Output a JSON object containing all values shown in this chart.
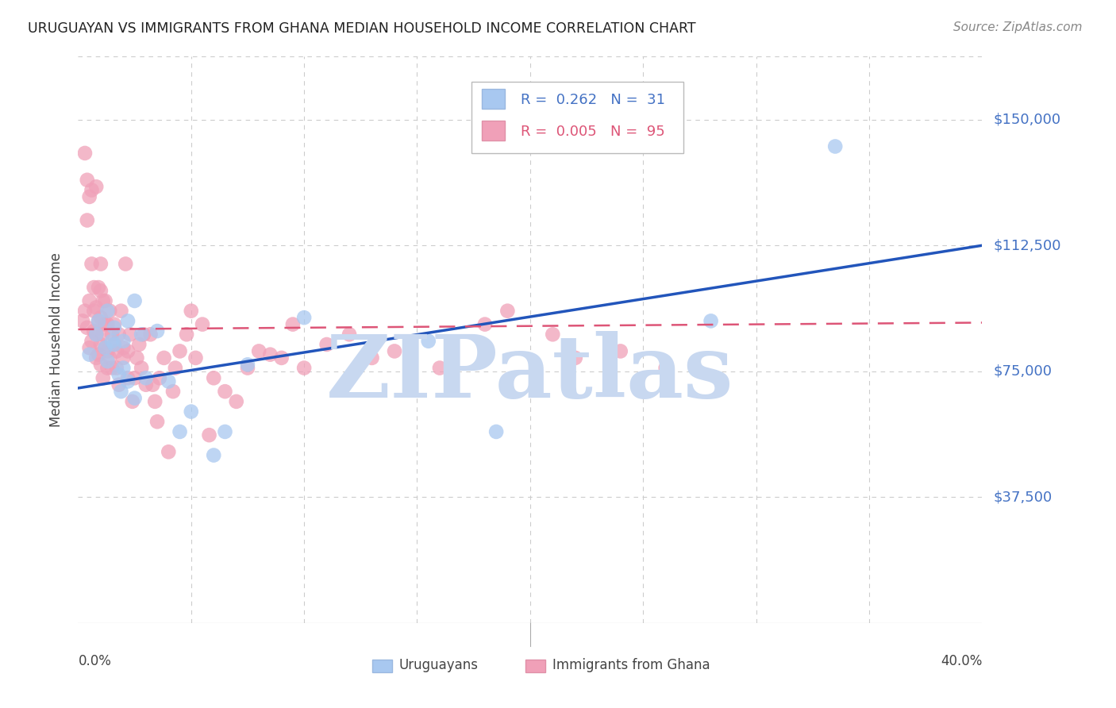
{
  "title": "URUGUAYAN VS IMMIGRANTS FROM GHANA MEDIAN HOUSEHOLD INCOME CORRELATION CHART",
  "source": "Source: ZipAtlas.com",
  "ylabel": "Median Household Income",
  "y_tick_labels": [
    "$37,500",
    "$75,000",
    "$112,500",
    "$150,000"
  ],
  "y_tick_values": [
    37500,
    75000,
    112500,
    150000
  ],
  "y_min": 0,
  "y_max": 168750,
  "x_min": 0.0,
  "x_max": 0.4,
  "legend_blue_r": "R =  0.262",
  "legend_blue_n": "N =  31",
  "legend_pink_r": "R =  0.005",
  "legend_pink_n": "N =  95",
  "blue_color": "#A8C8F0",
  "pink_color": "#F0A0B8",
  "blue_line_color": "#2255BB",
  "pink_line_color": "#DD5577",
  "background_color": "#FFFFFF",
  "watermark": "ZIPatlas",
  "watermark_color": "#C8D8F0",
  "blue_line_x": [
    0.0,
    0.4
  ],
  "blue_line_y": [
    70000,
    112500
  ],
  "pink_line_x": [
    0.0,
    0.4
  ],
  "pink_line_y": [
    87500,
    89500
  ],
  "uruguayans_x": [
    0.005,
    0.008,
    0.009,
    0.012,
    0.013,
    0.013,
    0.015,
    0.016,
    0.016,
    0.018,
    0.019,
    0.02,
    0.02,
    0.022,
    0.022,
    0.025,
    0.025,
    0.028,
    0.03,
    0.035,
    0.04,
    0.045,
    0.05,
    0.06,
    0.065,
    0.075,
    0.1,
    0.155,
    0.185,
    0.28,
    0.335
  ],
  "uruguayans_y": [
    80000,
    86000,
    90000,
    82000,
    93000,
    78000,
    84000,
    88000,
    83000,
    74000,
    69000,
    76000,
    84000,
    72000,
    90000,
    96000,
    67000,
    86000,
    73000,
    87000,
    72000,
    57000,
    63000,
    50000,
    57000,
    77000,
    91000,
    84000,
    57000,
    90000,
    142000
  ],
  "ghana_x": [
    0.002,
    0.003,
    0.003,
    0.004,
    0.004,
    0.004,
    0.005,
    0.005,
    0.005,
    0.006,
    0.006,
    0.006,
    0.007,
    0.007,
    0.007,
    0.008,
    0.008,
    0.008,
    0.008,
    0.009,
    0.009,
    0.009,
    0.01,
    0.01,
    0.01,
    0.01,
    0.01,
    0.011,
    0.011,
    0.011,
    0.012,
    0.012,
    0.012,
    0.013,
    0.013,
    0.013,
    0.014,
    0.014,
    0.015,
    0.015,
    0.016,
    0.016,
    0.017,
    0.017,
    0.018,
    0.018,
    0.019,
    0.02,
    0.02,
    0.021,
    0.022,
    0.022,
    0.023,
    0.024,
    0.025,
    0.026,
    0.027,
    0.028,
    0.029,
    0.03,
    0.032,
    0.033,
    0.034,
    0.035,
    0.036,
    0.038,
    0.04,
    0.042,
    0.043,
    0.045,
    0.048,
    0.05,
    0.052,
    0.055,
    0.058,
    0.06,
    0.065,
    0.07,
    0.075,
    0.08,
    0.085,
    0.09,
    0.095,
    0.1,
    0.11,
    0.12,
    0.13,
    0.14,
    0.16,
    0.18,
    0.19,
    0.21,
    0.22,
    0.24,
    0.26
  ],
  "ghana_y": [
    90000,
    93000,
    140000,
    132000,
    88000,
    120000,
    127000,
    96000,
    82000,
    107000,
    84000,
    129000,
    93000,
    87000,
    100000,
    130000,
    94000,
    86000,
    79000,
    100000,
    90000,
    80000,
    99000,
    107000,
    83000,
    77000,
    91000,
    73000,
    86000,
    96000,
    89000,
    82000,
    96000,
    89000,
    81000,
    76000,
    93000,
    79000,
    86000,
    76000,
    89000,
    83000,
    76000,
    81000,
    71000,
    86000,
    93000,
    82000,
    79000,
    107000,
    81000,
    73000,
    86000,
    66000,
    73000,
    79000,
    83000,
    76000,
    86000,
    71000,
    86000,
    71000,
    66000,
    60000,
    73000,
    79000,
    51000,
    69000,
    76000,
    81000,
    86000,
    93000,
    79000,
    89000,
    56000,
    73000,
    69000,
    66000,
    76000,
    81000,
    80000,
    79000,
    89000,
    76000,
    83000,
    86000,
    79000,
    81000,
    76000,
    89000,
    93000,
    86000,
    79000,
    81000,
    76000
  ]
}
